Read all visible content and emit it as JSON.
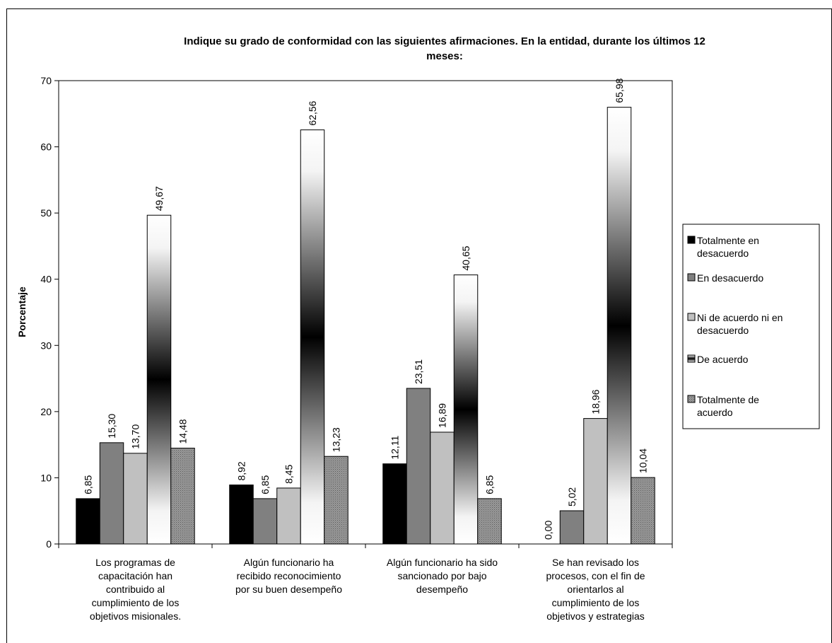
{
  "chart_data": {
    "type": "bar",
    "title_lines": [
      "Indique su grado de conformidad con las siguientes afirmaciones. En la entidad, durante los últimos 12",
      "meses:"
    ],
    "ylabel": "Porcentaje",
    "xlabel": "",
    "ylim": [
      0,
      70
    ],
    "yticks": [
      0,
      10,
      20,
      30,
      40,
      50,
      60,
      70
    ],
    "grid": false,
    "legend_position": "right",
    "categories": [
      [
        "Los programas de",
        "capacitación han",
        "contribuido al",
        "cumplimiento de los",
        "objetivos misionales."
      ],
      [
        "Algún funcionario ha",
        "recibido reconocimiento",
        "por su buen desempeño"
      ],
      [
        "Algún funcionario  ha sido",
        "sancionado por bajo",
        "desempeño"
      ],
      [
        "Se han revisado los",
        "procesos, con el fin de",
        "orientarlos al",
        "cumplimiento de los",
        "objetivos y estrategias"
      ]
    ],
    "series": [
      {
        "name_lines": [
          "Totalmente en",
          "desacuerdo"
        ],
        "values": [
          6.85,
          8.92,
          12.11,
          0.0
        ],
        "labels": [
          "6,85",
          "8,92",
          "12,11",
          "0,00"
        ],
        "fill": "#000000",
        "style": "solid"
      },
      {
        "name_lines": [
          "En desacuerdo"
        ],
        "values": [
          15.3,
          6.85,
          23.51,
          5.02
        ],
        "labels": [
          "15,30",
          "6,85",
          "23,51",
          "5,02"
        ],
        "fill": "#808080",
        "style": "solid"
      },
      {
        "name_lines": [
          "Ni de acuerdo ni en",
          "desacuerdo"
        ],
        "values": [
          13.7,
          8.45,
          16.89,
          18.96
        ],
        "labels": [
          "13,70",
          "8,45",
          "16,89",
          "18,96"
        ],
        "fill": "#c0c0c0",
        "style": "solid"
      },
      {
        "name_lines": [
          "De acuerdo"
        ],
        "values": [
          49.67,
          62.56,
          40.65,
          65.98
        ],
        "labels": [
          "49,67",
          "62,56",
          "40,65",
          "65,98"
        ],
        "fill": "#ffffff",
        "style": "gradient"
      },
      {
        "name_lines": [
          "Totalmente de",
          "acuerdo"
        ],
        "values": [
          14.48,
          13.23,
          6.85,
          10.04
        ],
        "labels": [
          "14,48",
          "13,23",
          "6,85",
          "10,04"
        ],
        "fill": "#8c8c8c",
        "style": "pattern"
      }
    ]
  }
}
